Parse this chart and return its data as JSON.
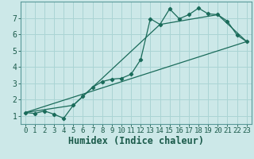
{
  "xlabel": "Humidex (Indice chaleur)",
  "bg_color": "#cce8e8",
  "line_color": "#1a6b5a",
  "xlim": [
    -0.5,
    23.5
  ],
  "ylim": [
    0.5,
    8.0
  ],
  "xticks": [
    0,
    1,
    2,
    3,
    4,
    5,
    6,
    7,
    8,
    9,
    10,
    11,
    12,
    13,
    14,
    15,
    16,
    17,
    18,
    19,
    20,
    21,
    22,
    23
  ],
  "yticks": [
    1,
    2,
    3,
    4,
    5,
    6,
    7
  ],
  "series1_x": [
    0,
    1,
    2,
    3,
    4,
    5,
    6,
    7,
    8,
    9,
    10,
    11,
    12,
    13,
    14,
    15,
    16,
    17,
    18,
    19,
    20,
    21,
    22,
    23
  ],
  "series1_y": [
    1.2,
    1.15,
    1.3,
    1.1,
    0.85,
    1.65,
    2.2,
    2.75,
    3.1,
    3.25,
    3.3,
    3.55,
    4.45,
    6.95,
    6.6,
    7.55,
    6.95,
    7.2,
    7.6,
    7.25,
    7.2,
    6.8,
    5.95,
    5.55
  ],
  "series2_x": [
    0,
    23
  ],
  "series2_y": [
    1.2,
    5.55
  ],
  "series3_x": [
    0,
    5,
    14,
    20,
    23
  ],
  "series3_y": [
    1.2,
    1.65,
    6.6,
    7.2,
    5.55
  ],
  "grid_color": "#aad4d4",
  "tick_fontsize": 6.5,
  "xlabel_fontsize": 8.5
}
